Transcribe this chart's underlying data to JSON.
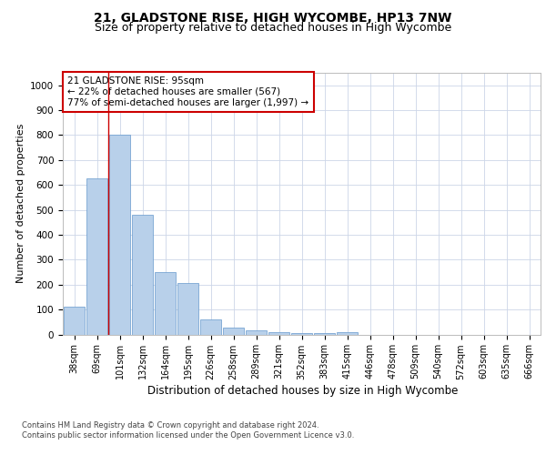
{
  "title1": "21, GLADSTONE RISE, HIGH WYCOMBE, HP13 7NW",
  "title2": "Size of property relative to detached houses in High Wycombe",
  "xlabel": "Distribution of detached houses by size in High Wycombe",
  "ylabel": "Number of detached properties",
  "footnote1": "Contains HM Land Registry data © Crown copyright and database right 2024.",
  "footnote2": "Contains public sector information licensed under the Open Government Licence v3.0.",
  "annotation_line1": "21 GLADSTONE RISE: 95sqm",
  "annotation_line2": "← 22% of detached houses are smaller (567)",
  "annotation_line3": "77% of semi-detached houses are larger (1,997) →",
  "bar_color": "#b8d0ea",
  "bar_edge_color": "#6699cc",
  "vline_color": "#cc0000",
  "vline_x_index": 2,
  "categories": [
    "38sqm",
    "69sqm",
    "101sqm",
    "132sqm",
    "164sqm",
    "195sqm",
    "226sqm",
    "258sqm",
    "289sqm",
    "321sqm",
    "352sqm",
    "383sqm",
    "415sqm",
    "446sqm",
    "478sqm",
    "509sqm",
    "540sqm",
    "572sqm",
    "603sqm",
    "635sqm",
    "666sqm"
  ],
  "values": [
    110,
    625,
    800,
    480,
    250,
    205,
    60,
    28,
    18,
    10,
    5,
    5,
    10,
    0,
    0,
    0,
    0,
    0,
    0,
    0,
    0
  ],
  "ylim": [
    0,
    1050
  ],
  "yticks": [
    0,
    100,
    200,
    300,
    400,
    500,
    600,
    700,
    800,
    900,
    1000
  ],
  "background_color": "#ffffff",
  "grid_color": "#ccd6e8",
  "title1_fontsize": 10,
  "title2_fontsize": 9,
  "annotation_fontsize": 7.5,
  "ylabel_fontsize": 8,
  "xlabel_fontsize": 8.5,
  "tick_fontsize": 7,
  "footnote_fontsize": 6
}
